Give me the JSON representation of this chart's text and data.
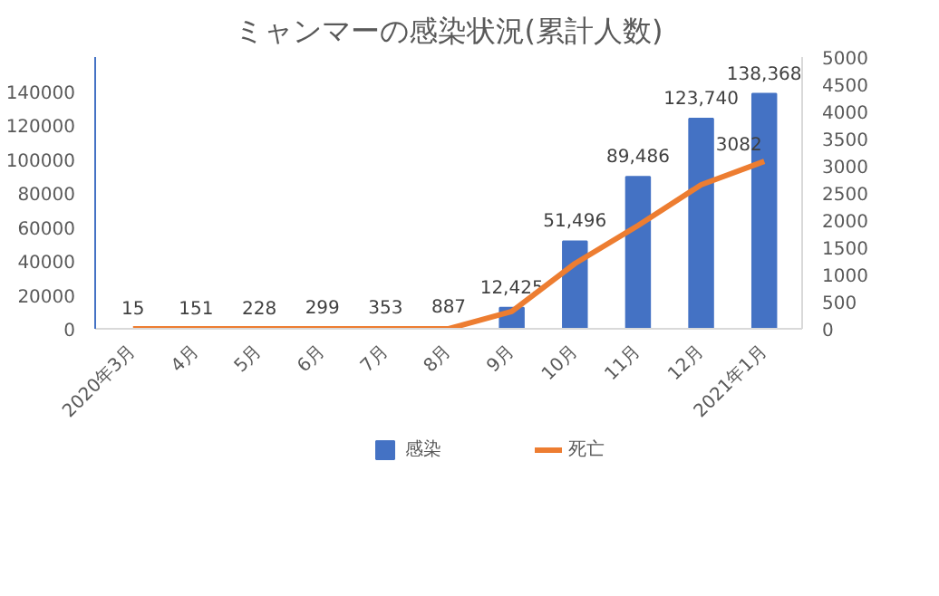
{
  "chart_data": {
    "type": "bar",
    "title": "ミャンマーの感染状況(累計人数)",
    "categories": [
      "2020年3月",
      "4月",
      "5月",
      "6月",
      "7月",
      "8月",
      "9月",
      "10月",
      "11月",
      "12月",
      "2021年1月"
    ],
    "series": [
      {
        "name": "感染",
        "color": "#4472c4",
        "values": [
          15,
          151,
          228,
          299,
          353,
          887,
          12425,
          51496,
          89486,
          123740,
          138368
        ],
        "value_labels": [
          "15",
          "151",
          "228",
          "299",
          "353",
          "887",
          "12,425",
          "51,496",
          "89,486",
          "123,740",
          "138,368"
        ]
      },
      {
        "name": "死亡",
        "type": "line",
        "axis": "y2",
        "color": "#ed7d31",
        "values": [
          0,
          0,
          0,
          0,
          0,
          0,
          320,
          1200,
          1900,
          2650,
          3082
        ],
        "value_labels": [
          null,
          null,
          null,
          null,
          null,
          null,
          null,
          null,
          null,
          null,
          "3082"
        ]
      }
    ],
    "ylim": [
      0,
      160000
    ],
    "yticks": [
      0,
      20000,
      40000,
      60000,
      80000,
      100000,
      120000,
      140000
    ],
    "y2lim": [
      0,
      5000
    ],
    "y2ticks": [
      0,
      500,
      1000,
      1500,
      2000,
      2500,
      3000,
      3500,
      4000,
      4500,
      5000
    ],
    "grid": false,
    "legend": "bottom",
    "marker": "none",
    "line_style": "solid"
  }
}
